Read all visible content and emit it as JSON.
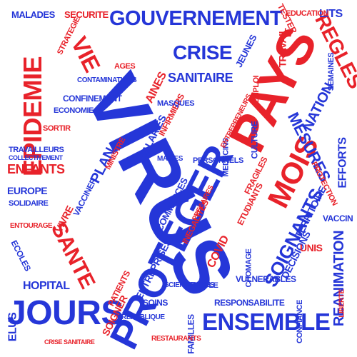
{
  "colors": {
    "blue": "#2536d8",
    "red": "#e8222a",
    "navy": "#1a1f8c",
    "background": "#ffffff"
  },
  "words": {
    "virus": "VIRUS",
    "pays": "PAYS",
    "proteger": "PROTEGER",
    "jours": "JOURS",
    "ensemble": "ENSEMBLE",
    "gouvernement": "GOUVERNEMENT",
    "epidemie": "EPIDEMIE",
    "mois": "MOIS",
    "sante": "SANTE",
    "soignants": "SOIGNANTS",
    "crise": "CRISE",
    "sanitaire": "SANITAIRE",
    "vie": "VIE",
    "regles": "REGLES",
    "mesures": "MESURES",
    "nation": "NATION",
    "enfants": "ENFANTS",
    "hopital": "HOPITAL",
    "reanimation": "REANIMATION",
    "efforts": "EFFORTS",
    "malades": "MALADES",
    "securite": "SECURITE",
    "lits": "LITS",
    "europe": "EUROPE",
    "vivre": "VIVRE",
    "plan": "PLAN",
    "elus": "ELUS",
    "ecoles": "ECOLES",
    "responsabilite": "RESPONSABILITE",
    "travail": "TRAVAIL",
    "jeunes": "JEUNES",
    "aines": "AINES",
    "covid": "COVID",
    "decisions": "DECISIONS",
    "territoire": "TERRITOIRE",
    "salaries": "SALARIES",
    "infirmiers": "INFIRMIERS",
    "medecins": "MEDECINS",
    "travailleurs": "TRAVAILLEURS",
    "collectivement": "COLLECTIVEMENT",
    "entreprises": "ENTREPRISES",
    "commerces": "COMMERCES",
    "masques": "MASQUES",
    "tester": "TESTER",
    "education": "EDUCATION",
    "solidaire": "SOLIDAIRE",
    "economie": "ECONOMIE",
    "confinement": "CONFINEMENT",
    "strategie": "STRATEGIE",
    "patients": "PATIENTS",
    "familles": "FAMILLES",
    "soins": "SOINS",
    "vaccin": "VACCIN",
    "republique": "REPUBLIQUE",
    "culture": "CULTURE",
    "etudiants": "ETUDIANTS",
    "chomage": "CHOMAGE",
    "vulnerables": "VULNERABLES",
    "restaurants": "RESTAURANTS",
    "fragiles": "FRAGILES",
    "unis": "UNIS",
    "soigner": "SOIGNER",
    "personnels": "PERSONNELS",
    "contaminations": "CONTAMINATIONS",
    "ministre": "MINISTRE",
    "maires": "MAIRES",
    "vacciner": "VACCINER",
    "inegalites": "INEGALITES",
    "precaires": "PRECAIRES",
    "scientifiques": "SCIENTIFIQUES",
    "entrepreneurs": "ENTREPRENEURS",
    "confiance": "CONFIANCE",
    "liberte": "LIBERTE",
    "protection": "PROTECTION",
    "crise_sanitaire": "CRISE SANITAIRE",
    "ages": "AGES",
    "ecole": "ECOLE",
    "emploi": "EMPLOI",
    "sortir": "SORTIR",
    "entourage": "ENTOURAGE",
    "semaines": "SEMAINES"
  }
}
